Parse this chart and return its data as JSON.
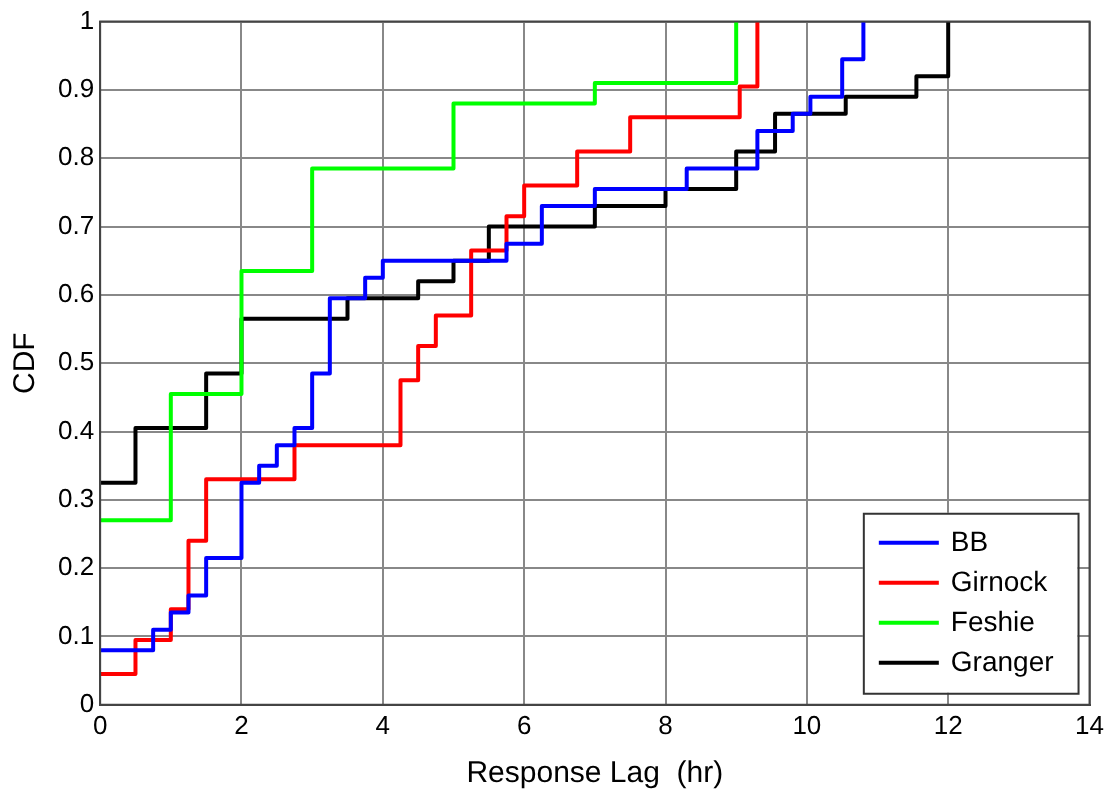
{
  "chart_data": {
    "type": "step",
    "xlabel": "Response Lag  (hr)",
    "ylabel": "CDF",
    "xlim": [
      0,
      14
    ],
    "xticks": [
      0,
      2,
      4,
      6,
      8,
      10,
      12,
      14
    ],
    "ylim": [
      0,
      1
    ],
    "yticks": [
      0,
      0.1,
      0.2,
      0.3,
      0.4,
      0.5,
      0.6,
      0.7,
      0.8,
      0.9,
      1
    ],
    "grid": true,
    "legend": "bottom right",
    "line_style": "solid",
    "series": [
      {
        "name": "BB",
        "color": "#0000ff",
        "x": [
          0,
          0.75,
          1,
          1.25,
          1.5,
          2,
          2.25,
          2.5,
          2.75,
          3,
          3.25,
          3.75,
          4,
          5.75,
          6.25,
          7,
          8.3,
          9.3,
          9.8,
          10.05,
          10.5,
          10.8
        ],
        "values": [
          0.08,
          0.11,
          0.135,
          0.16,
          0.215,
          0.325,
          0.35,
          0.38,
          0.405,
          0.485,
          0.595,
          0.625,
          0.65,
          0.675,
          0.73,
          0.755,
          0.785,
          0.84,
          0.865,
          0.89,
          0.945,
          1
        ]
      },
      {
        "name": "Girnock",
        "color": "#ff0000",
        "x": [
          0,
          0.5,
          1,
          1.25,
          1.5,
          2.75,
          4.25,
          4.5,
          4.75,
          5.25,
          5.75,
          6,
          6.75,
          7.5,
          9.05,
          9.3
        ],
        "values": [
          0.045,
          0.095,
          0.14,
          0.24,
          0.33,
          0.38,
          0.475,
          0.525,
          0.57,
          0.665,
          0.715,
          0.76,
          0.81,
          0.86,
          0.905,
          1
        ]
      },
      {
        "name": "Feshie",
        "color": "#00ff00",
        "x": [
          0,
          1,
          2,
          3,
          5,
          7,
          9
        ],
        "values": [
          0.27,
          0.455,
          0.635,
          0.785,
          0.88,
          0.91,
          1
        ]
      },
      {
        "name": "Granger",
        "color": "#000000",
        "x": [
          0,
          0.5,
          1.5,
          2,
          3.5,
          4.5,
          5,
          5.5,
          7,
          8,
          9,
          9.55,
          10.55,
          11.55,
          12
        ],
        "values": [
          0.325,
          0.405,
          0.485,
          0.565,
          0.595,
          0.62,
          0.65,
          0.7,
          0.73,
          0.755,
          0.81,
          0.865,
          0.89,
          0.92,
          1
        ]
      }
    ]
  }
}
